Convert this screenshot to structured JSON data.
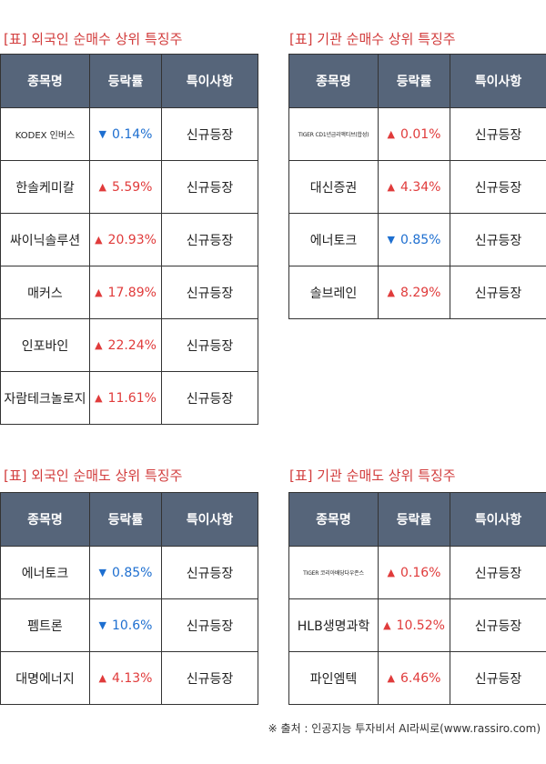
{
  "headers": {
    "name": "종목명",
    "rate": "등락률",
    "note": "특이사항"
  },
  "sections": [
    {
      "title": "[표] 외국인 순매수 상위 특징주",
      "rows": [
        {
          "name": "KODEX 인버스",
          "dir": "down",
          "arrow": "▼",
          "rate": "0.14%",
          "note": "신규등장",
          "size": "small"
        },
        {
          "name": "한솔케미칼",
          "dir": "up",
          "arrow": "▲",
          "rate": "5.59%",
          "note": "신규등장"
        },
        {
          "name": "싸이닉솔루션",
          "dir": "up",
          "arrow": "▲",
          "rate": "20.93%",
          "note": "신규등장"
        },
        {
          "name": "매커스",
          "dir": "up",
          "arrow": "▲",
          "rate": "17.89%",
          "note": "신규등장"
        },
        {
          "name": "인포바인",
          "dir": "up",
          "arrow": "▲",
          "rate": "22.24%",
          "note": "신규등장"
        },
        {
          "name": "자람테크놀로지",
          "dir": "up",
          "arrow": "▲",
          "rate": "11.61%",
          "note": "신규등장"
        }
      ]
    },
    {
      "title": "[표] 기관 순매수 상위 특징주",
      "rows": [
        {
          "name": "TIGER CD1년금리액티브(합성)",
          "dir": "up",
          "arrow": "▲",
          "rate": "0.01%",
          "note": "신규등장",
          "size": "tiny"
        },
        {
          "name": "대신증권",
          "dir": "up",
          "arrow": "▲",
          "rate": "4.34%",
          "note": "신규등장"
        },
        {
          "name": "에너토크",
          "dir": "down",
          "arrow": "▼",
          "rate": "0.85%",
          "note": "신규등장"
        },
        {
          "name": "솔브레인",
          "dir": "up",
          "arrow": "▲",
          "rate": "8.29%",
          "note": "신규등장"
        }
      ]
    },
    {
      "title": "[표] 외국인 순매도 상위 특징주",
      "rows": [
        {
          "name": "에너토크",
          "dir": "down",
          "arrow": "▼",
          "rate": "0.85%",
          "note": "신규등장"
        },
        {
          "name": "펨트론",
          "dir": "down",
          "arrow": "▼",
          "rate": "10.6%",
          "note": "신규등장"
        },
        {
          "name": "대명에너지",
          "dir": "up",
          "arrow": "▲",
          "rate": "4.13%",
          "note": "신규등장"
        }
      ]
    },
    {
      "title": "[표] 기관 순매도 상위 특징주",
      "rows": [
        {
          "name": "TIGER 코리아배당다우존스",
          "dir": "up",
          "arrow": "▲",
          "rate": "0.16%",
          "note": "신규등장",
          "size": "tiny"
        },
        {
          "name": "HLB생명과학",
          "dir": "up",
          "arrow": "▲",
          "rate": "10.52%",
          "note": "신규등장"
        },
        {
          "name": "파인엠텍",
          "dir": "up",
          "arrow": "▲",
          "rate": "6.46%",
          "note": "신규등장"
        }
      ]
    }
  ],
  "source": "※ 출처 : 인공지능 투자비서 AI라씨로(www.rassiro.com)"
}
